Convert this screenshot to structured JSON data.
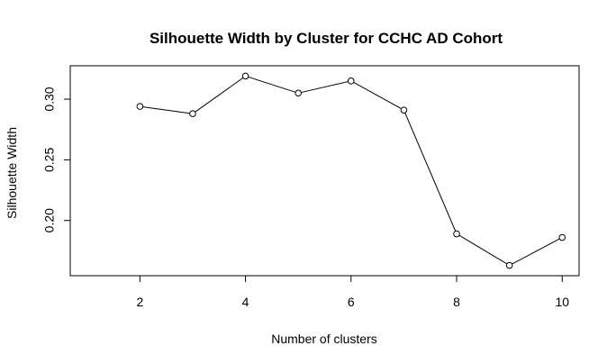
{
  "chart_data": {
    "type": "line",
    "title": "Silhouette Width by Cluster for CCHC AD Cohort",
    "xlabel": "Number of clusters",
    "ylabel": "Silhouette Width",
    "x": [
      2,
      3,
      4,
      5,
      6,
      7,
      8,
      9,
      10
    ],
    "y": [
      0.294,
      0.288,
      0.319,
      0.305,
      0.315,
      0.291,
      0.189,
      0.163,
      0.186
    ],
    "xlim": [
      0.68,
      10.32
    ],
    "ylim": [
      0.1545,
      0.3275
    ],
    "xticks": [
      2,
      4,
      6,
      8,
      10
    ],
    "xtick_labels": [
      "2",
      "4",
      "6",
      "8",
      "10"
    ],
    "yticks": [
      0.2,
      0.25,
      0.3
    ],
    "ytick_labels": [
      "0.20",
      "0.25",
      "0.30"
    ],
    "grid": false,
    "line_color": "#000000",
    "marker": "open-circle"
  }
}
